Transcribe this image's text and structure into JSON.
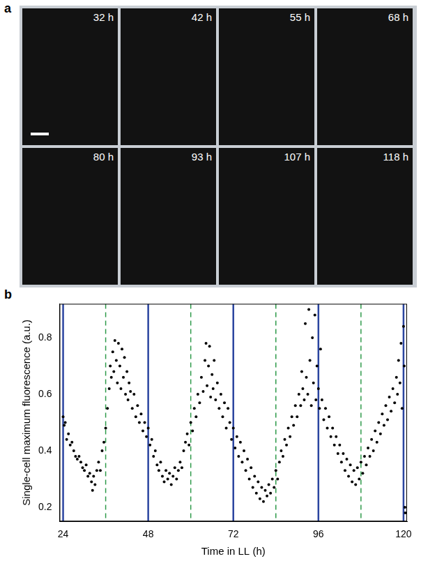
{
  "panel_a": {
    "label": "a",
    "images": [
      {
        "time": "32 h"
      },
      {
        "time": "42 h"
      },
      {
        "time": "55 h"
      },
      {
        "time": "68 h"
      },
      {
        "time": "80 h"
      },
      {
        "time": "93 h"
      },
      {
        "time": "107 h"
      },
      {
        "time": "118 h"
      }
    ]
  },
  "chart_data": {
    "panel_label": "b",
    "type": "scatter",
    "x_label": "Time in LL (h)",
    "y_label": "Single-cell maximum fluorescence (a.u.)",
    "xlim": [
      23,
      121
    ],
    "ylim": [
      0.15,
      0.92
    ],
    "xticks": [
      24,
      48,
      72,
      96,
      120
    ],
    "yticks": [
      0.2,
      0.4,
      0.6,
      0.8
    ],
    "grid": false,
    "color": "#000000",
    "marker": "circle",
    "reference_lines": [
      {
        "x": 24,
        "color": "#2b45a0",
        "line_style": "solid"
      },
      {
        "x": 36,
        "color": "#2e9a4a",
        "line_style": "dashed"
      },
      {
        "x": 48,
        "color": "#2b45a0",
        "line_style": "solid"
      },
      {
        "x": 60,
        "color": "#2e9a4a",
        "line_style": "dashed"
      },
      {
        "x": 72,
        "color": "#2b45a0",
        "line_style": "solid"
      },
      {
        "x": 84,
        "color": "#2e9a4a",
        "line_style": "dashed"
      },
      {
        "x": 96,
        "color": "#2b45a0",
        "line_style": "solid"
      },
      {
        "x": 108,
        "color": "#2e9a4a",
        "line_style": "dashed"
      },
      {
        "x": 120,
        "color": "#2b45a0",
        "line_style": "solid"
      }
    ],
    "x": [
      24,
      24.3,
      24.6,
      25,
      25.5,
      26,
      26.5,
      27,
      27.5,
      28,
      28.5,
      29,
      29.5,
      30,
      30.5,
      31,
      31.5,
      32,
      32.3,
      32.6,
      33,
      33.5,
      34,
      34.5,
      35,
      35.5,
      36,
      36.5,
      37,
      37.3,
      37.6,
      38,
      38.3,
      38.6,
      39,
      39.3,
      39.6,
      40,
      40.3,
      40.6,
      41,
      41.3,
      41.6,
      42,
      42.3,
      42.6,
      43,
      43.5,
      44,
      44.5,
      45,
      45.5,
      46,
      46.5,
      47,
      47.5,
      48,
      48.5,
      49,
      49.5,
      50,
      50.5,
      51,
      51.5,
      52,
      52.5,
      53,
      53.5,
      54,
      54.5,
      55,
      55.5,
      56,
      56.5,
      57,
      57.5,
      58,
      58.5,
      59,
      59.5,
      60,
      60.5,
      61,
      61.5,
      62,
      62.5,
      63,
      63.5,
      64,
      64.3,
      64.6,
      65,
      65.3,
      65.6,
      66,
      66.3,
      66.6,
      67,
      67.5,
      68,
      68.5,
      69,
      69.5,
      70,
      70.5,
      71,
      71.5,
      72,
      72.5,
      73,
      73.5,
      74,
      74.5,
      75,
      75.5,
      76,
      76.5,
      77,
      77.5,
      78,
      78.5,
      79,
      79.5,
      80,
      80.5,
      81,
      81.5,
      82,
      82.5,
      83,
      83.5,
      84,
      84.5,
      85,
      85.5,
      86,
      86.5,
      87,
      87.5,
      88,
      88.5,
      89,
      89.5,
      90,
      90.5,
      91,
      91.3,
      91.6,
      92,
      92.3,
      92.6,
      93,
      93.3,
      93.6,
      94,
      94.3,
      94.6,
      95,
      95.3,
      95.6,
      96,
      96.3,
      96.6,
      97,
      97.5,
      98,
      98.5,
      99,
      99.5,
      100,
      100.5,
      101,
      101.5,
      102,
      102.5,
      103,
      103.5,
      104,
      104.5,
      105,
      105.5,
      106,
      106.5,
      107,
      107.5,
      108,
      108.5,
      109,
      109.5,
      110,
      110.5,
      111,
      111.5,
      112,
      112.5,
      113,
      113.5,
      114,
      114.5,
      115,
      115.5,
      116,
      116.5,
      117,
      117.5,
      118,
      118.3,
      118.6,
      119,
      119.3,
      119.6,
      120,
      120.2,
      120.4,
      120.5
    ],
    "values": [
      0.52,
      0.49,
      0.5,
      0.44,
      0.46,
      0.42,
      0.43,
      0.4,
      0.38,
      0.37,
      0.38,
      0.36,
      0.34,
      0.33,
      0.35,
      0.31,
      0.32,
      0.29,
      0.26,
      0.31,
      0.28,
      0.33,
      0.36,
      0.33,
      0.4,
      0.43,
      0.48,
      0.55,
      0.62,
      0.7,
      0.66,
      0.75,
      0.68,
      0.79,
      0.72,
      0.64,
      0.78,
      0.7,
      0.62,
      0.76,
      0.66,
      0.73,
      0.6,
      0.68,
      0.58,
      0.64,
      0.61,
      0.55,
      0.6,
      0.52,
      0.56,
      0.5,
      0.53,
      0.47,
      0.5,
      0.45,
      0.48,
      0.42,
      0.44,
      0.38,
      0.4,
      0.35,
      0.33,
      0.36,
      0.31,
      0.29,
      0.33,
      0.3,
      0.32,
      0.28,
      0.31,
      0.34,
      0.3,
      0.33,
      0.36,
      0.34,
      0.4,
      0.43,
      0.46,
      0.42,
      0.5,
      0.47,
      0.55,
      0.52,
      0.6,
      0.57,
      0.66,
      0.61,
      0.72,
      0.78,
      0.63,
      0.7,
      0.77,
      0.59,
      0.67,
      0.62,
      0.72,
      0.58,
      0.64,
      0.55,
      0.6,
      0.52,
      0.57,
      0.48,
      0.55,
      0.5,
      0.44,
      0.48,
      0.41,
      0.45,
      0.38,
      0.43,
      0.36,
      0.4,
      0.33,
      0.37,
      0.3,
      0.34,
      0.27,
      0.31,
      0.25,
      0.29,
      0.23,
      0.27,
      0.22,
      0.26,
      0.24,
      0.28,
      0.25,
      0.3,
      0.27,
      0.33,
      0.3,
      0.36,
      0.4,
      0.38,
      0.44,
      0.42,
      0.48,
      0.45,
      0.52,
      0.49,
      0.56,
      0.52,
      0.6,
      0.56,
      0.68,
      0.62,
      0.58,
      0.85,
      0.66,
      0.6,
      0.9,
      0.72,
      0.56,
      0.8,
      0.64,
      0.88,
      0.58,
      0.7,
      0.62,
      0.55,
      0.76,
      0.58,
      0.51,
      0.55,
      0.48,
      0.52,
      0.45,
      0.48,
      0.42,
      0.45,
      0.39,
      0.42,
      0.36,
      0.39,
      0.33,
      0.37,
      0.31,
      0.35,
      0.29,
      0.33,
      0.28,
      0.34,
      0.3,
      0.36,
      0.32,
      0.38,
      0.35,
      0.41,
      0.38,
      0.44,
      0.4,
      0.47,
      0.43,
      0.5,
      0.46,
      0.53,
      0.49,
      0.56,
      0.51,
      0.59,
      0.54,
      0.62,
      0.57,
      0.66,
      0.6,
      0.72,
      0.64,
      0.78,
      0.55,
      0.84,
      0.7,
      0.2,
      0.18
    ]
  }
}
